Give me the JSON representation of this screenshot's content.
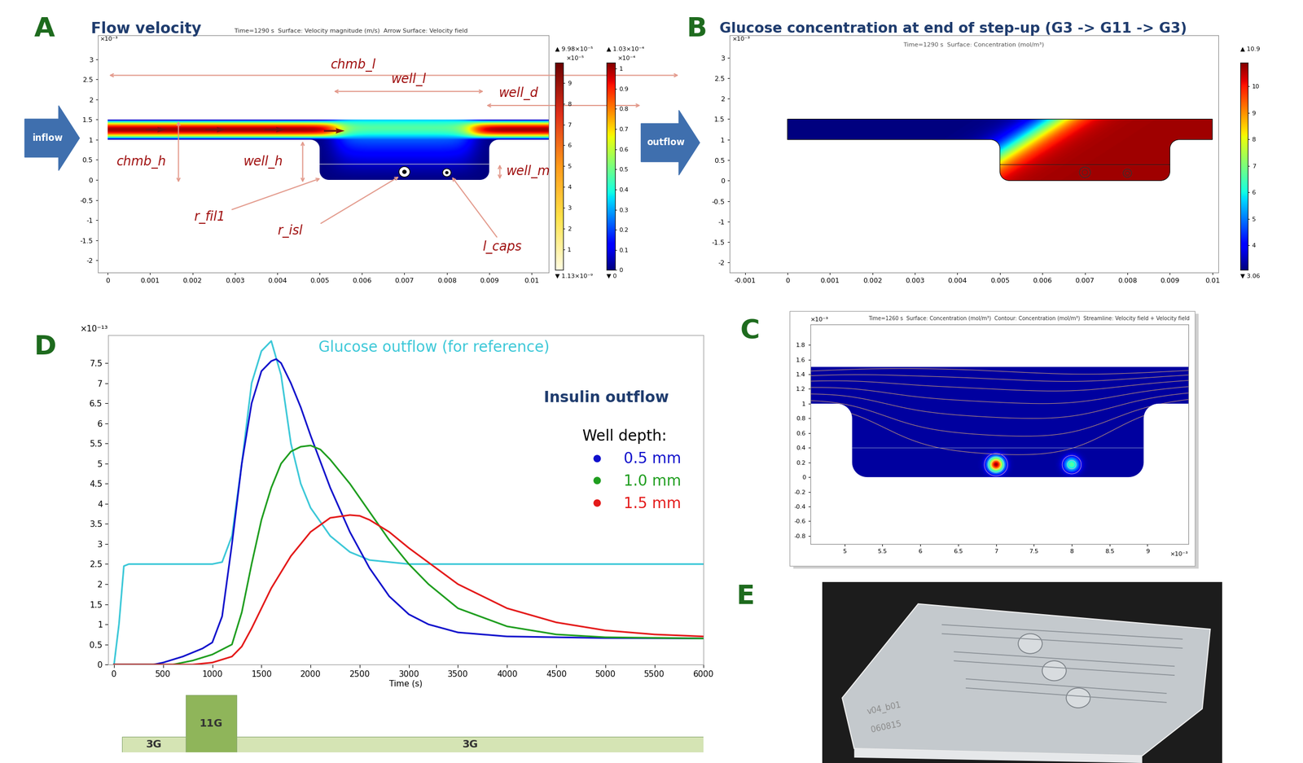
{
  "panel_letters": [
    "A",
    "B",
    "C",
    "D",
    "E"
  ],
  "panels": {
    "A": {
      "title": "Flow velocity",
      "header": "Time=1290 s  Surface: Velocity magnitude (m/s)  Arrow Surface: Velocity field",
      "xlim": [
        -0.000235,
        0.0104
      ],
      "xticks": [
        0,
        0.001,
        0.002,
        0.003,
        0.004,
        0.005,
        0.006,
        0.007,
        0.008,
        0.009,
        0.01
      ],
      "ylim": [
        -2.3,
        3.6
      ],
      "yticks": [
        -2,
        -1.5,
        -1,
        -0.5,
        0,
        0.5,
        1,
        1.5,
        2,
        2.5,
        3
      ],
      "y_scale_label": "×10⁻³",
      "dimensions": [
        "chmb_l",
        "well_l",
        "well_d",
        "chmb_h",
        "well_h",
        "well_m",
        "r_fil1",
        "r_isl",
        "l_caps"
      ],
      "inflow": "inflow",
      "outflow": "outflow",
      "colorbars": [
        {
          "range": [
            0.000113,
            9.98
          ],
          "ticks": [
            1,
            2,
            3,
            4,
            5,
            6,
            7,
            8,
            9
          ],
          "scale_label": "×10⁻⁵",
          "max_label": "▲ 9.98×10⁻⁵",
          "min_label": "▼ 1.13×10⁻⁹"
        },
        {
          "range": [
            0,
            1.03
          ],
          "ticks": [
            0,
            0.1,
            0.2,
            0.3,
            0.4,
            0.5,
            0.6,
            0.7,
            0.8,
            0.9,
            1
          ],
          "scale_label": "×10⁻⁴",
          "max_label": "▲ 1.03×10⁻⁴",
          "min_label": "▼ 0"
        }
      ]
    },
    "B": {
      "title": "Glucose concentration at end of step-up (G3 -> G11 -> G3)",
      "header": "Time=1290 s  Surface: Concentration (mol/m³)",
      "xlim": [
        -0.00136,
        0.01014
      ],
      "xticks": [
        -0.001,
        0,
        0.001,
        0.002,
        0.003,
        0.004,
        0.005,
        0.006,
        0.007,
        0.008,
        0.009,
        0.01
      ],
      "ylim": [
        -2.24,
        3.55
      ],
      "yticks": [
        -2,
        -1.5,
        -1,
        -0.5,
        0,
        0.5,
        1,
        1.5,
        2,
        2.5,
        3
      ],
      "y_scale_label": "×10⁻³",
      "colorbar": {
        "range": [
          3.06,
          10.9
        ],
        "ticks": [
          4,
          5,
          6,
          7,
          8,
          9,
          10
        ],
        "max_label": "▲ 10.9",
        "min_label": "▼ 3.06"
      }
    },
    "C": {
      "header": "Time=1260 s  Surface: Concentration (mol/m³)  Contour: Concentration (mol/m³)  Streamline: Velocity field + Velocity field",
      "xlim": [
        4.55,
        9.54
      ],
      "xticks": [
        5,
        5.5,
        6,
        6.5,
        7,
        7.5,
        8,
        8.5,
        9
      ],
      "ylim": [
        -0.91,
        2.08
      ],
      "yticks": [
        -0.8,
        -0.6,
        -0.4,
        -0.2,
        0,
        0.2,
        0.4,
        0.6,
        0.8,
        1,
        1.2,
        1.4,
        1.6,
        1.8
      ],
      "scale_label": "×10⁻³"
    }
  },
  "chart_data": {
    "type": "line",
    "title": "Insulin outflow",
    "x_label": "Time (s)",
    "xlim": [
      -60,
      6000
    ],
    "xticks": [
      0,
      500,
      1000,
      1500,
      2000,
      2500,
      3000,
      3500,
      4000,
      4500,
      5000,
      5500,
      6000
    ],
    "ylim": [
      0,
      8.2
    ],
    "yticks": [
      0,
      0.5,
      1,
      1.5,
      2,
      2.5,
      3,
      3.5,
      4,
      4.5,
      5,
      5.5,
      6,
      6.5,
      7,
      7.5
    ],
    "y_scale_label": "×10⁻¹³",
    "legend": "upper right",
    "legend_title": "Well depth:",
    "reference": {
      "name": "Glucose outflow (for reference)",
      "color": "#3cc8d8",
      "x": [
        0,
        50,
        100,
        150,
        500,
        1000,
        1100,
        1200,
        1300,
        1400,
        1500,
        1600,
        1700,
        1800,
        1900,
        2000,
        2200,
        2400,
        2600,
        2800,
        3000,
        4000,
        5000,
        6000
      ],
      "values": [
        0,
        1.0,
        2.45,
        2.5,
        2.5,
        2.5,
        2.55,
        3.2,
        5.0,
        7.0,
        7.8,
        8.05,
        7.2,
        5.5,
        4.5,
        3.9,
        3.2,
        2.8,
        2.6,
        2.55,
        2.5,
        2.5,
        2.5,
        2.5
      ]
    },
    "series": [
      {
        "name": "0.5 mm",
        "color": "#1010cc",
        "x": [
          0,
          400,
          500,
          700,
          900,
          1000,
          1100,
          1200,
          1300,
          1400,
          1500,
          1600,
          1650,
          1700,
          1800,
          1900,
          2000,
          2200,
          2400,
          2600,
          2800,
          3000,
          3200,
          3500,
          4000,
          5000,
          6000
        ],
        "values": [
          0,
          0,
          0.05,
          0.2,
          0.4,
          0.55,
          1.2,
          3.0,
          5.0,
          6.5,
          7.3,
          7.55,
          7.6,
          7.5,
          7.0,
          6.4,
          5.7,
          4.4,
          3.3,
          2.4,
          1.7,
          1.25,
          1.0,
          0.8,
          0.7,
          0.66,
          0.65
        ]
      },
      {
        "name": "1.0 mm",
        "color": "#1f9e1f",
        "x": [
          0,
          600,
          800,
          1000,
          1200,
          1300,
          1400,
          1500,
          1600,
          1700,
          1800,
          1900,
          2000,
          2100,
          2200,
          2400,
          2600,
          2800,
          3000,
          3200,
          3500,
          4000,
          4500,
          5000,
          6000
        ],
        "values": [
          0,
          0,
          0.1,
          0.25,
          0.5,
          1.3,
          2.5,
          3.6,
          4.4,
          5.0,
          5.3,
          5.42,
          5.45,
          5.35,
          5.1,
          4.5,
          3.8,
          3.1,
          2.5,
          2.0,
          1.4,
          0.95,
          0.75,
          0.68,
          0.65
        ]
      },
      {
        "name": "1.5 mm",
        "color": "#e41a1a",
        "x": [
          0,
          800,
          1000,
          1200,
          1300,
          1400,
          1500,
          1600,
          1800,
          2000,
          2200,
          2400,
          2500,
          2600,
          2800,
          3000,
          3500,
          4000,
          4500,
          5000,
          5500,
          6000
        ],
        "values": [
          0,
          0,
          0.05,
          0.2,
          0.45,
          0.9,
          1.4,
          1.9,
          2.7,
          3.3,
          3.65,
          3.72,
          3.7,
          3.6,
          3.3,
          2.9,
          2.0,
          1.4,
          1.05,
          0.85,
          0.75,
          0.7
        ]
      }
    ],
    "protocol": [
      {
        "label": "3G",
        "start": 80,
        "end": 730,
        "glucose": 3,
        "color": "#d5e4b4"
      },
      {
        "label": "11G",
        "start": 730,
        "end": 1250,
        "glucose": 11,
        "color": "#8fb55a"
      },
      {
        "label": "3G",
        "start": 1250,
        "end": 6000,
        "glucose": 3,
        "color": "#d5e4b4"
      }
    ]
  },
  "photo": {
    "texts": [
      "v04_b01",
      "060815"
    ]
  }
}
